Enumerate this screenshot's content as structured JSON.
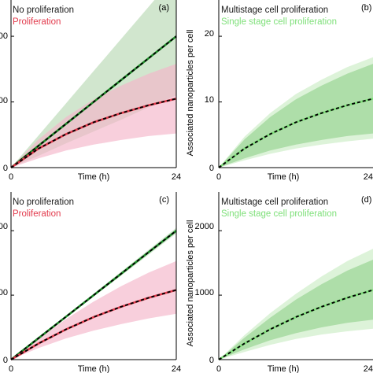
{
  "colors": {
    "no_prolif_line": "#1f8f2a",
    "no_prolif_band": "#b9d9b4",
    "prolif_line": "#e23a4c",
    "prolif_band": "#f4b6c9",
    "multi_band": "#a6d9a0",
    "single_band": "#d2efcc",
    "single_line": "#7fe07a",
    "dashed": "#000000"
  },
  "chart_data": [
    {
      "panel": "(a)",
      "type": "line",
      "xlabel": "Time (h)",
      "ylabel": "",
      "x_ticks": [
        "0",
        "24"
      ],
      "y_ticks": [
        "0",
        "00",
        "00"
      ],
      "xlim": [
        0,
        24
      ],
      "ylim": [
        0,
        26
      ],
      "legend": [
        "No proliferation",
        "Proliferation"
      ],
      "legend_placement": "top-left",
      "series": [
        {
          "name": "No proliferation",
          "x": [
            0,
            4,
            8,
            12,
            16,
            20,
            24
          ],
          "y": [
            0,
            3.33,
            6.67,
            10,
            13.33,
            16.67,
            20
          ],
          "band_lower": [
            0,
            1.8,
            3.7,
            5.5,
            7.3,
            9.2,
            11
          ],
          "band_upper": [
            0,
            4.9,
            9.8,
            14.7,
            19.6,
            24.5,
            29.4
          ]
        },
        {
          "name": "Proliferation",
          "x": [
            0,
            4,
            8,
            12,
            16,
            20,
            24
          ],
          "y": [
            0,
            2.9,
            5.1,
            6.9,
            8.3,
            9.5,
            10.5
          ],
          "band_lower": [
            0,
            1.4,
            2.6,
            3.5,
            4.2,
            4.8,
            5.2
          ],
          "band_upper": [
            0,
            4.3,
            7.7,
            10.4,
            12.5,
            14.3,
            15.8
          ]
        }
      ]
    },
    {
      "panel": "(b)",
      "type": "line",
      "xlabel": "Time (h)",
      "ylabel": "Associated nanoparticles per cell",
      "x_ticks": [
        "0",
        "24"
      ],
      "y_ticks": [
        "0",
        "10",
        "20"
      ],
      "xlim": [
        0,
        24
      ],
      "ylim": [
        0,
        26
      ],
      "legend": [
        "Multistage cell proliferation",
        "Single stage cell proliferation"
      ],
      "legend_placement": "top-left",
      "series": [
        {
          "name": "Multistage cell proliferation",
          "x": [
            0,
            4,
            8,
            12,
            16,
            20,
            24
          ],
          "y": [
            0,
            2.9,
            5.1,
            6.9,
            8.3,
            9.5,
            10.5
          ],
          "band_lower": [
            0,
            1.4,
            2.6,
            3.5,
            4.2,
            4.8,
            5.2
          ],
          "band_upper": [
            0,
            4.3,
            7.7,
            10.4,
            12.5,
            14.3,
            15.8
          ]
        },
        {
          "name": "Single stage cell proliferation",
          "x": [
            0,
            4,
            8,
            12,
            16,
            20,
            24
          ],
          "y": [
            0,
            2.9,
            5.1,
            6.9,
            8.3,
            9.5,
            10.5
          ],
          "band_lower": [
            0,
            1.1,
            2.1,
            2.9,
            3.5,
            4.0,
            4.4
          ],
          "band_upper": [
            0,
            4.7,
            8.3,
            11.2,
            13.4,
            15.3,
            16.8
          ]
        }
      ]
    },
    {
      "panel": "(c)",
      "type": "line",
      "xlabel": "Time (h)",
      "ylabel": "",
      "x_ticks": [
        "0",
        "24"
      ],
      "y_ticks": [
        "0",
        "00",
        "00"
      ],
      "xlim": [
        0,
        24
      ],
      "ylim": [
        0,
        2600
      ],
      "legend": [
        "No proliferation",
        "Proliferation"
      ],
      "legend_placement": "top-left",
      "series": [
        {
          "name": "No proliferation",
          "x": [
            0,
            4,
            8,
            12,
            16,
            20,
            24
          ],
          "y": [
            0,
            333,
            667,
            1000,
            1333,
            1667,
            2000
          ],
          "band_lower": [
            0,
            325,
            652,
            978,
            1304,
            1630,
            1955
          ],
          "band_upper": [
            0,
            341,
            682,
            1022,
            1363,
            1704,
            2045
          ]
        },
        {
          "name": "Proliferation",
          "x": [
            0,
            4,
            8,
            12,
            16,
            20,
            24
          ],
          "y": [
            0,
            250,
            470,
            660,
            820,
            960,
            1080
          ],
          "band_lower": [
            0,
            180,
            330,
            450,
            550,
            640,
            710
          ],
          "band_upper": [
            0,
            330,
            630,
            900,
            1140,
            1350,
            1530
          ]
        }
      ]
    },
    {
      "panel": "(d)",
      "type": "line",
      "xlabel": "Time (h)",
      "ylabel": "Associated nanoparticles per cell",
      "x_ticks": [
        "0",
        "24"
      ],
      "y_ticks": [
        "0",
        "1000",
        "2000"
      ],
      "xlim": [
        0,
        24
      ],
      "ylim": [
        0,
        2600
      ],
      "legend": [
        "Multistage cell proliferation",
        "Single stage cell proliferation"
      ],
      "legend_placement": "top-left",
      "series": [
        {
          "name": "Multistage cell proliferation",
          "x": [
            0,
            4,
            8,
            12,
            16,
            20,
            24
          ],
          "y": [
            0,
            250,
            470,
            660,
            820,
            960,
            1080
          ],
          "band_lower": [
            0,
            160,
            300,
            410,
            500,
            570,
            620
          ],
          "band_upper": [
            0,
            340,
            650,
            930,
            1170,
            1380,
            1550
          ]
        },
        {
          "name": "Single stage cell proliferation",
          "x": [
            0,
            4,
            8,
            12,
            16,
            20,
            24
          ],
          "y": [
            0,
            250,
            470,
            660,
            820,
            960,
            1080
          ],
          "band_lower": [
            0,
            120,
            230,
            320,
            390,
            440,
            480
          ],
          "band_upper": [
            0,
            380,
            720,
            1020,
            1290,
            1530,
            1720
          ]
        }
      ]
    }
  ]
}
